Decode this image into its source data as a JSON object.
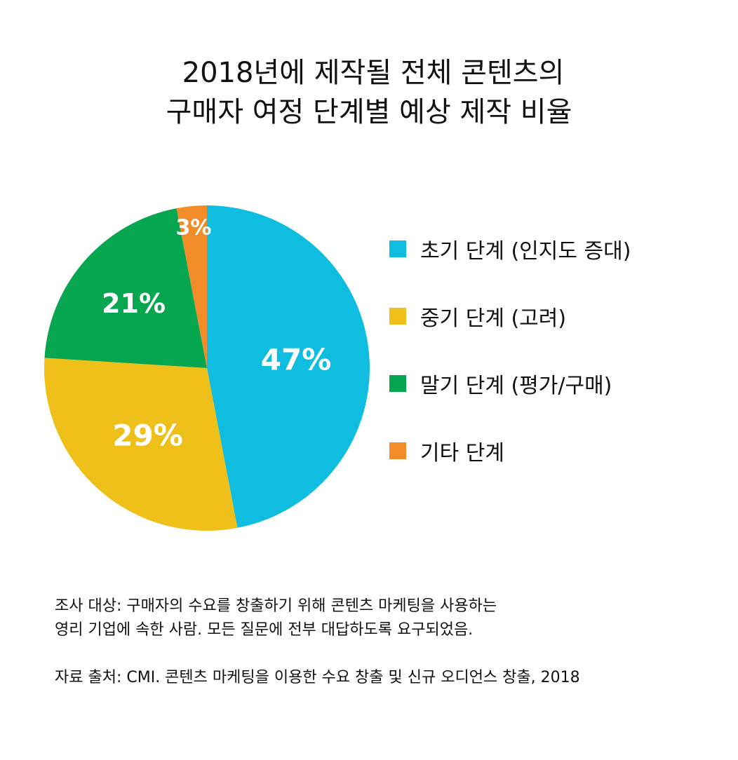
{
  "title": {
    "line1": "2018년에 제작될 전체 콘텐츠의",
    "line2": "구매자 여정 단계별 예상 제작 비율"
  },
  "chart_data": {
    "type": "pie",
    "title": "2018년에 제작될 전체 콘텐츠의 구매자 여정 단계별 예상 제작 비율",
    "start": "12 o'clock, clockwise",
    "legend_position": "right",
    "slices": [
      {
        "name": "초기 단계 (인지도 증대)",
        "value": 47,
        "label": "47%",
        "color": "#0fbde0"
      },
      {
        "name": "중기 단계 (고려)",
        "value": 29,
        "label": "29%",
        "color": "#f0c01a"
      },
      {
        "name": "말기 단계 (평가/구매)",
        "value": 21,
        "label": "21%",
        "color": "#06a651"
      },
      {
        "name": "기타 단계",
        "value": 3,
        "label": "3%",
        "color": "#f28c28"
      }
    ]
  },
  "notes": {
    "survey_line1": "조사 대상: 구매자의 수요를 창출하기 위해 콘텐츠 마케팅을 사용하는",
    "survey_line2": "영리 기업에 속한 사람. 모든 질문에 전부 대답하도록 요구되었음.",
    "source": "자료 출처: CMI. 콘텐츠 마케팅을 이용한 수요 창출 및 신규 오디언스 창출, 2018"
  }
}
